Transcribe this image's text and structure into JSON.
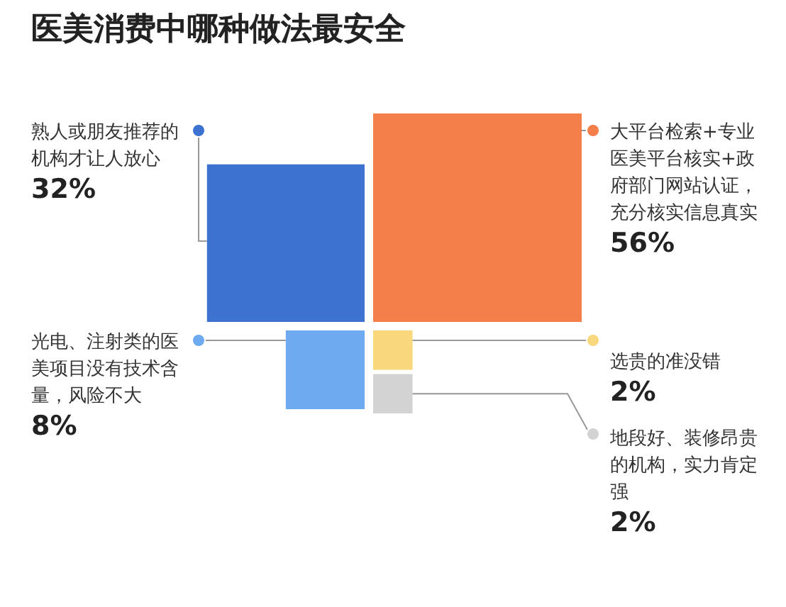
{
  "chart_data": {
    "type": "other",
    "title": "医美消费中哪种做法最安全",
    "categories": [
      "熟人或朋友推荐的机构才让人放心",
      "大平台检索+专业医美平台核实+政府部门网站认证，充分核实信息真实",
      "光电、注射类的医美项目没有技术含量，风险不大",
      "选贵的准没错",
      "地段好、装修昂贵的机构，实力肯定强"
    ],
    "values": [
      32,
      56,
      8,
      2,
      2
    ],
    "value_labels": [
      "32%",
      "56%",
      "8%",
      "2%",
      "2%"
    ],
    "colors": [
      "#3d72d1",
      "#f57f4b",
      "#6eaaf0",
      "#f9d77c",
      "#d3d3d3"
    ]
  }
}
